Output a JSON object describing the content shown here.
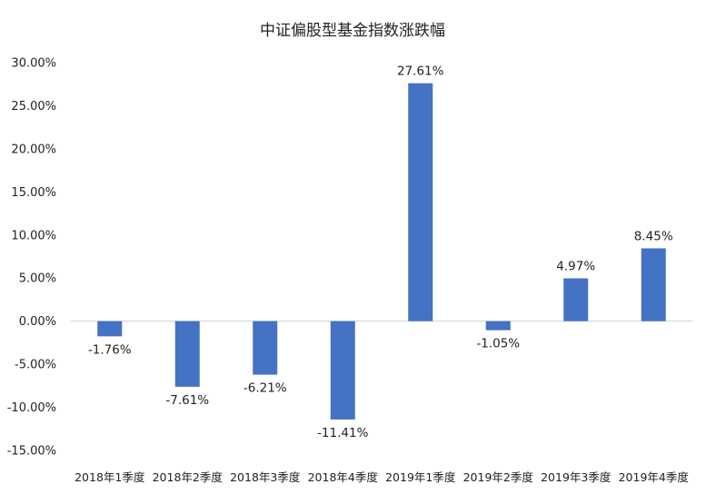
{
  "chart_data": {
    "type": "bar",
    "title": "中证偏股型基金指数涨跌幅",
    "categories": [
      "2018年1季度",
      "2018年2季度",
      "2018年3季度",
      "2018年4季度",
      "2019年1季度",
      "2019年2季度",
      "2019年3季度",
      "2019年4季度"
    ],
    "values": [
      -1.76,
      -7.61,
      -6.21,
      -11.41,
      27.61,
      -1.05,
      4.97,
      8.45
    ],
    "data_labels": [
      "-1.76%",
      "-7.61%",
      "-6.21%",
      "-11.41%",
      "27.61%",
      "-1.05%",
      "4.97%",
      "8.45%"
    ],
    "yticks": [
      30,
      25,
      20,
      15,
      10,
      5,
      0,
      -5,
      -10,
      -15
    ],
    "ytick_labels": [
      "30.00%",
      "25.00%",
      "20.00%",
      "15.00%",
      "10.00%",
      "5.00%",
      "0.00%",
      "-5.00%",
      "-10.00%",
      "-15.00%"
    ],
    "ylim": [
      -15,
      30
    ],
    "xlabel": "",
    "ylabel": "",
    "grid": false,
    "legend": "none",
    "bar_color": "#4472C4"
  }
}
